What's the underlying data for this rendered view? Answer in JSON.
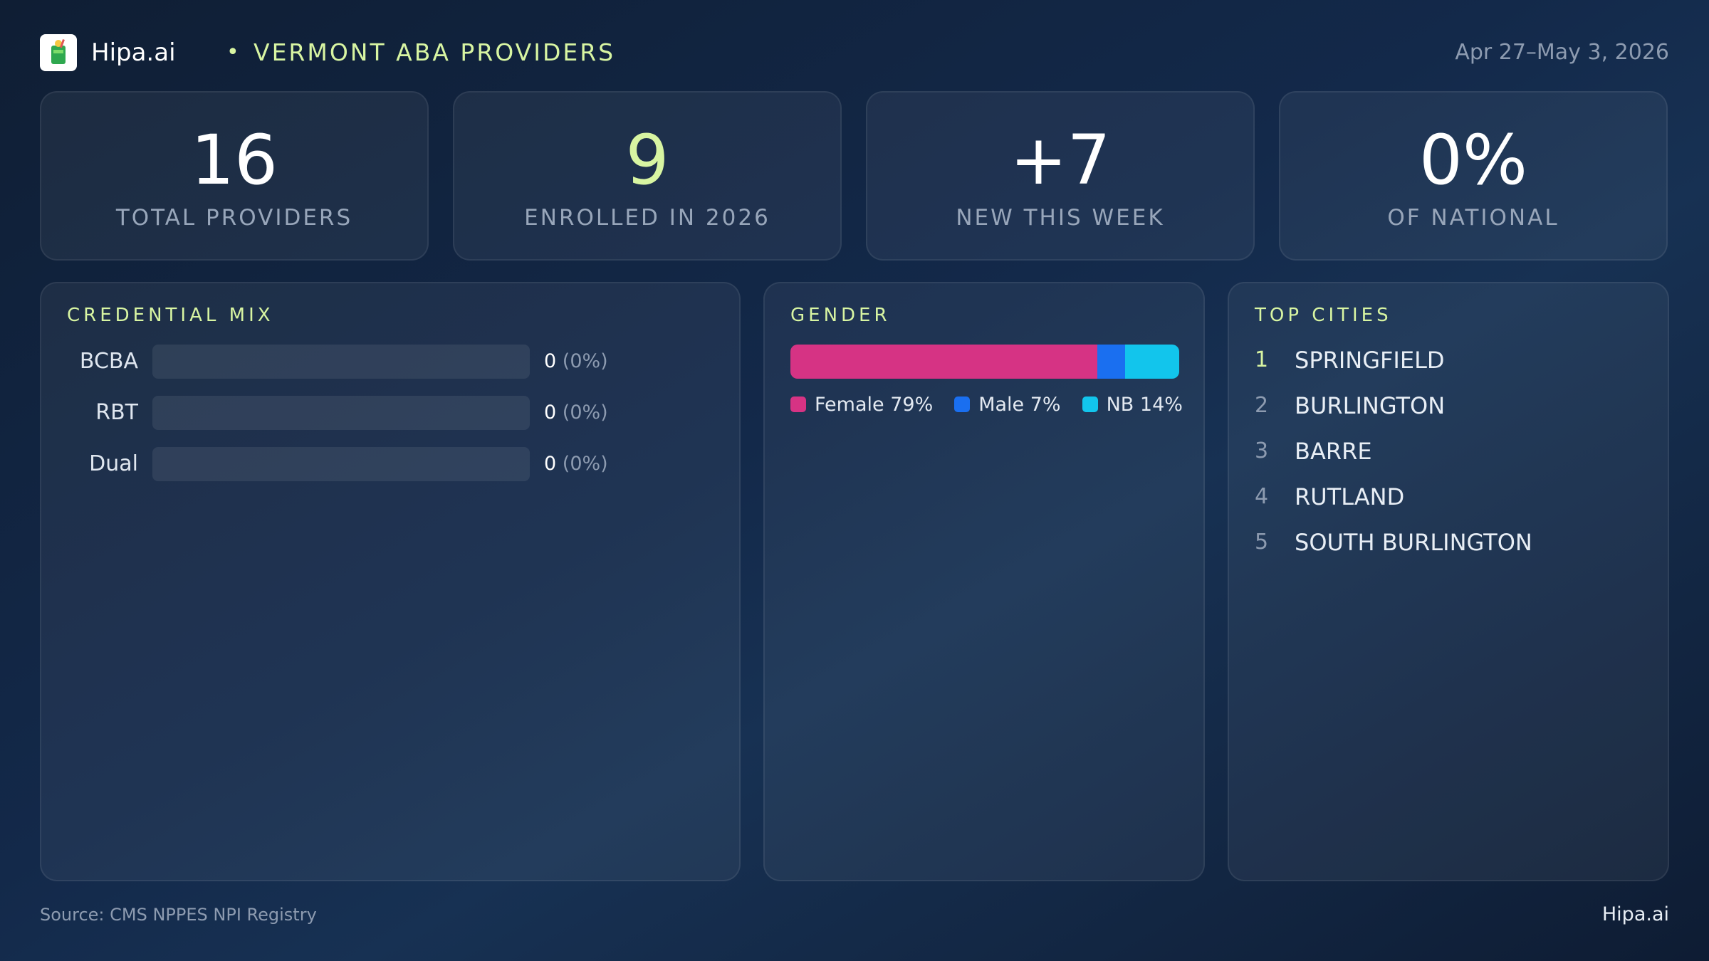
{
  "header": {
    "brand": "Hipa.ai",
    "separator": "•",
    "title": "VERMONT ABA PROVIDERS",
    "date_range": "Apr 27–May 3, 2026",
    "logo_icon": "cup-logo-icon"
  },
  "kpis": [
    {
      "value": "16",
      "label": "TOTAL PROVIDERS"
    },
    {
      "value": "9",
      "label": "ENROLLED IN 2026"
    },
    {
      "value": "+7",
      "label": "NEW THIS WEEK"
    },
    {
      "value": "0%",
      "label": "OF NATIONAL"
    }
  ],
  "credential_mix": {
    "title": "CREDENTIAL MIX",
    "rows": [
      {
        "label": "BCBA",
        "count": "0",
        "pct": "(0%)",
        "share": 0
      },
      {
        "label": "RBT",
        "count": "0",
        "pct": "(0%)",
        "share": 0
      },
      {
        "label": "Dual",
        "count": "0",
        "pct": "(0%)",
        "share": 0
      }
    ]
  },
  "gender": {
    "title": "GENDER",
    "segments": [
      {
        "label": "Female 79%",
        "share": 79,
        "color": "#d63384"
      },
      {
        "label": "Male 7%",
        "share": 7,
        "color": "#1a6ff0"
      },
      {
        "label": "NB 14%",
        "share": 14,
        "color": "#12c5ec"
      }
    ]
  },
  "top_cities": {
    "title": "TOP CITIES",
    "items": [
      {
        "rank": "1",
        "name": "SPRINGFIELD"
      },
      {
        "rank": "2",
        "name": "BURLINGTON"
      },
      {
        "rank": "3",
        "name": "BARRE"
      },
      {
        "rank": "4",
        "name": "RUTLAND"
      },
      {
        "rank": "5",
        "name": "SOUTH BURLINGTON"
      }
    ]
  },
  "footer": {
    "source": "Source: CMS NPPES NPI Registry",
    "brand": "Hipa.ai"
  },
  "colors": {
    "accent": "#d8f5a2",
    "muted": "#8d9bb0"
  }
}
